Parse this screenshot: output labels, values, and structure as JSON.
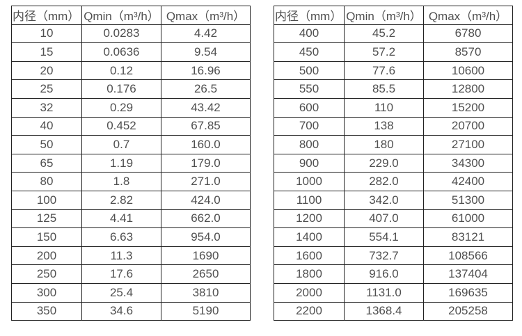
{
  "colors": {
    "background": "#ffffff",
    "border": "#222222",
    "text": "#4f4f4f"
  },
  "chart_data": [
    {
      "type": "table",
      "title": "",
      "columns": [
        "内径（mm）",
        "Qmin（m³/h）",
        "Qmax（m³/h）"
      ],
      "rows": [
        [
          "10",
          "0.0283",
          "4.42"
        ],
        [
          "15",
          "0.0636",
          "9.54"
        ],
        [
          "20",
          "0.12",
          "16.96"
        ],
        [
          "25",
          "0.176",
          "26.5"
        ],
        [
          "32",
          "0.29",
          "43.42"
        ],
        [
          "40",
          "0.452",
          "67.85"
        ],
        [
          "50",
          "0.7",
          "160.0"
        ],
        [
          "65",
          "1.19",
          "179.0"
        ],
        [
          "80",
          "1.8",
          "271.0"
        ],
        [
          "100",
          "2.82",
          "424.0"
        ],
        [
          "125",
          "4.41",
          "662.0"
        ],
        [
          "150",
          "6.63",
          "954.0"
        ],
        [
          "200",
          "11.3",
          "1690"
        ],
        [
          "250",
          "17.6",
          "2650"
        ],
        [
          "300",
          "25.4",
          "3810"
        ],
        [
          "350",
          "34.6",
          "5190"
        ]
      ]
    },
    {
      "type": "table",
      "title": "",
      "columns": [
        "内径（mm）",
        "Qmin（m³/h）",
        "Qmax（m³/h）"
      ],
      "rows": [
        [
          "400",
          "45.2",
          "6780"
        ],
        [
          "450",
          "57.2",
          "8570"
        ],
        [
          "500",
          "77.6",
          "10600"
        ],
        [
          "550",
          "85.5",
          "12800"
        ],
        [
          "600",
          "110",
          "15200"
        ],
        [
          "700",
          "138",
          "20700"
        ],
        [
          "800",
          "180",
          "27100"
        ],
        [
          "900",
          "229.0",
          "34300"
        ],
        [
          "1000",
          "282.0",
          "42400"
        ],
        [
          "1100",
          "342.0",
          "51300"
        ],
        [
          "1200",
          "407.0",
          "61000"
        ],
        [
          "1400",
          "554.1",
          "83121"
        ],
        [
          "1600",
          "732.7",
          "108566"
        ],
        [
          "1800",
          "916.0",
          "137404"
        ],
        [
          "2000",
          "1131.0",
          "169635"
        ],
        [
          "2200",
          "1368.4",
          "205258"
        ]
      ]
    }
  ]
}
